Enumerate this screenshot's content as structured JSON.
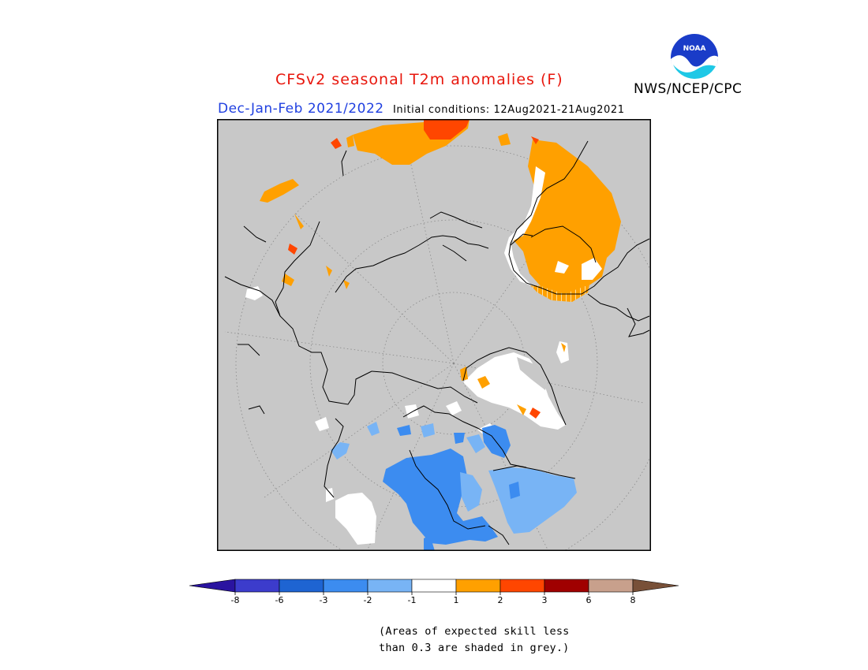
{
  "header": {
    "title": "CFSv2 seasonal T2m anomalies (F)",
    "period": "Dec-Jan-Feb 2021/2022",
    "initial_conditions": "Initial conditions: 12Aug2021-21Aug2021",
    "org": "NWS/NCEP/CPC",
    "logo_text": "NOAA"
  },
  "colors": {
    "title": "#e8160c",
    "period": "#1f3fe0",
    "low_skill_grey": "#c8c8c8",
    "bins": [
      "#2a14a0",
      "#3c3ccc",
      "#1e64d2",
      "#3c8cf0",
      "#78b4f5",
      "#ffffff",
      "#ffa000",
      "#ff4600",
      "#a00000",
      "#c8a08c",
      "#785038"
    ]
  },
  "legend": {
    "ticks": [
      "-8",
      "-6",
      "-3",
      "-2",
      "-1",
      "1",
      "2",
      "3",
      "6",
      "8"
    ]
  },
  "note": {
    "line1": "(Areas of expected skill less",
    "line2": "than 0.3 are shaded in grey.)"
  }
}
